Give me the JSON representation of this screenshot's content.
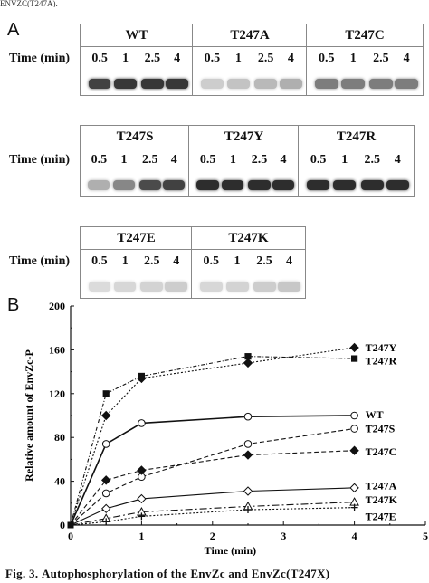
{
  "header_fragment": "ENVZC(T247A).",
  "panel_a": {
    "letter": "A",
    "time_label": "Time (min)",
    "times": [
      "0.5",
      "1",
      "2.5",
      "4"
    ],
    "rows": [
      [
        "WT",
        "T247A",
        "T247C"
      ],
      [
        "T247S",
        "T247Y",
        "T247R"
      ],
      [
        "T247E",
        "T247K"
      ]
    ],
    "band_intensity": {
      "WT": [
        0.85,
        0.9,
        0.9,
        0.9
      ],
      "T247A": [
        0.15,
        0.2,
        0.25,
        0.3
      ],
      "T247C": [
        0.55,
        0.55,
        0.55,
        0.55
      ],
      "T247S": [
        0.3,
        0.5,
        0.8,
        0.85
      ],
      "T247Y": [
        0.95,
        0.95,
        0.95,
        0.95
      ],
      "T247R": [
        0.95,
        0.95,
        0.95,
        0.95
      ],
      "T247E": [
        0.08,
        0.1,
        0.12,
        0.15
      ],
      "T247K": [
        0.1,
        0.12,
        0.15,
        0.18
      ]
    }
  },
  "panel_b": {
    "letter": "B"
  },
  "chart_data": {
    "type": "line",
    "xlabel": "Time (min)",
    "ylabel": "Relative amount of EnvZc-P",
    "xlim": [
      0,
      5
    ],
    "ylim": [
      0,
      200
    ],
    "xticks": [
      "0",
      "1",
      "2",
      "3",
      "4",
      "5"
    ],
    "yticks": [
      "0",
      "40",
      "80",
      "120",
      "160",
      "200"
    ],
    "x": [
      0,
      0.5,
      1,
      2.5,
      4
    ],
    "series": [
      {
        "name": "T247Y",
        "values": [
          0,
          100,
          134,
          148,
          162
        ],
        "marker": "diamond-filled",
        "dash": "2,2"
      },
      {
        "name": "T247R",
        "values": [
          0,
          120,
          136,
          154,
          152
        ],
        "marker": "square-filled",
        "dash": "4,2,1,2"
      },
      {
        "name": "WT",
        "values": [
          0,
          74,
          93,
          99,
          100
        ],
        "marker": "circle-open",
        "dash": ""
      },
      {
        "name": "T247S",
        "values": [
          0,
          29,
          44,
          74,
          88
        ],
        "marker": "circle-open",
        "dash": "5,3"
      },
      {
        "name": "T247C",
        "values": [
          0,
          41,
          50,
          64,
          68
        ],
        "marker": "diamond-filled",
        "dash": "5,3"
      },
      {
        "name": "T247A",
        "values": [
          0,
          15,
          24,
          31,
          34
        ],
        "marker": "diamond-open",
        "dash": ""
      },
      {
        "name": "T247K",
        "values": [
          0,
          6,
          12,
          17,
          21
        ],
        "marker": "triangle-open",
        "dash": "8,3,2,3"
      },
      {
        "name": "T247E",
        "values": [
          0,
          3,
          8,
          14,
          16
        ],
        "marker": "plus",
        "dash": "2,2"
      }
    ]
  },
  "caption": {
    "lead": "Fig. 3.",
    "text": "Autophosphorylation of the EnvZc and EnvZc(T247X)"
  }
}
